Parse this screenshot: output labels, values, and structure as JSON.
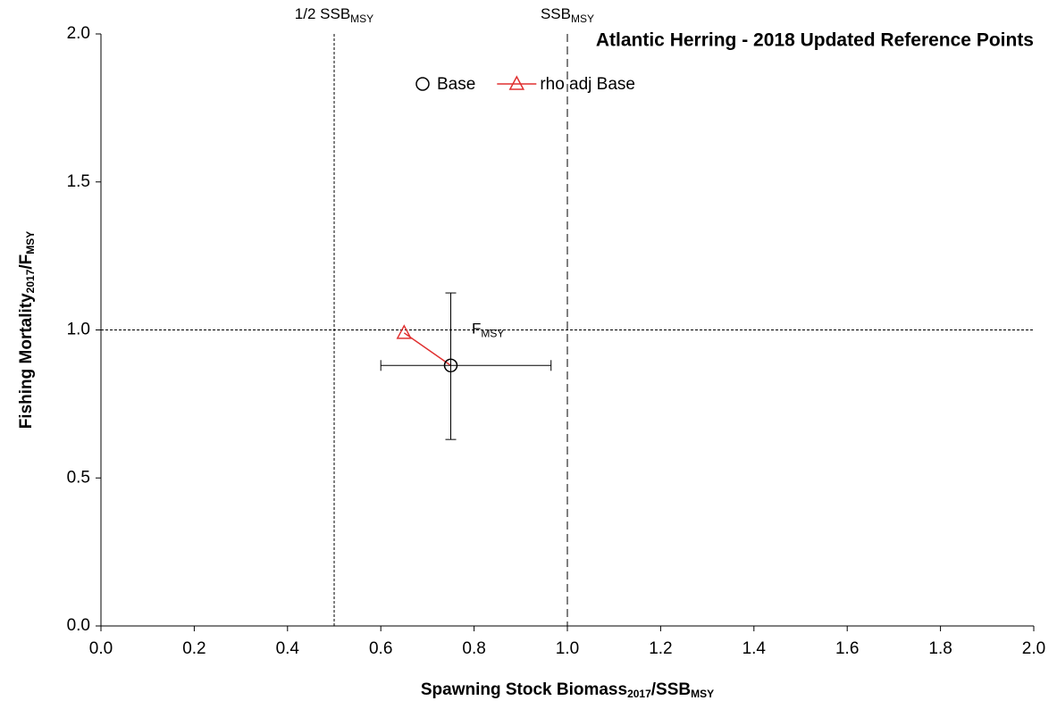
{
  "chart_data": {
    "type": "scatter",
    "title": "Atlantic Herring - 2018 Updated Reference Points",
    "x_label": [
      {
        "text": "Spawning Stock Biomass"
      },
      {
        "text": "2017",
        "sub": true
      },
      {
        "text": "/SSB"
      },
      {
        "text": "MSY",
        "sub": true
      }
    ],
    "y_label": [
      {
        "text": "Fishing Mortality"
      },
      {
        "text": "2017",
        "sub": true
      },
      {
        "text": "/F"
      },
      {
        "text": "MSY",
        "sub": true
      }
    ],
    "xlim": [
      0,
      2
    ],
    "ylim": [
      0,
      2
    ],
    "xticks": [
      {
        "value": 0,
        "label": "0.0"
      },
      0.2,
      0.4,
      0.6,
      0.8,
      {
        "value": 1,
        "label": "1.0"
      },
      1.2,
      1.4,
      1.6,
      1.8,
      {
        "value": 2,
        "label": "2.0"
      }
    ],
    "yticks": [
      {
        "value": 0,
        "label": "0.0"
      },
      0.5,
      {
        "value": 1,
        "label": "1.0"
      },
      1.5,
      {
        "value": 2,
        "label": "2.0"
      }
    ],
    "series": [
      {
        "name": "Base",
        "color": "#000000",
        "marker": "circle",
        "x": [
          0.75
        ],
        "values": [
          0.88
        ],
        "x_lower": [
          0.6
        ],
        "x_upper": [
          0.965
        ],
        "y_lower": [
          0.63
        ],
        "y_upper": [
          1.125
        ]
      },
      {
        "name": "rho adj Base",
        "color": "#e03030",
        "marker": "triangle",
        "x": [
          0.65
        ],
        "values": [
          0.99
        ]
      }
    ],
    "reference_lines": [
      {
        "axis": "x",
        "value": 0.5,
        "style": "dotted",
        "label": [
          {
            "text": "1/2 SSB"
          },
          {
            "text": "MSY",
            "sub": true
          }
        ]
      },
      {
        "axis": "x",
        "value": 1,
        "style": "dashed",
        "label": [
          {
            "text": "SSB"
          },
          {
            "text": "MSY",
            "sub": true
          }
        ]
      },
      {
        "axis": "y",
        "value": 1,
        "style": "dotted",
        "label": [
          {
            "text": "F"
          },
          {
            "text": "MSY",
            "sub": true
          }
        ]
      }
    ]
  }
}
